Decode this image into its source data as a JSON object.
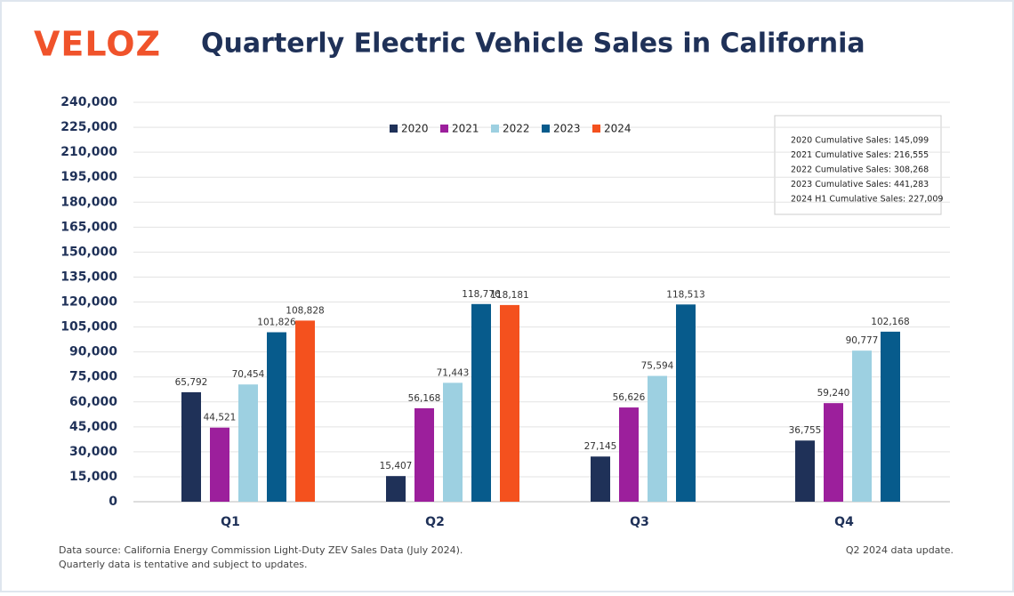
{
  "chart_data": {
    "type": "bar",
    "logo": "VELOZ",
    "title": "Quarterly Electric Vehicle Sales in California",
    "categories": [
      "Q1",
      "Q2",
      "Q3",
      "Q4"
    ],
    "series": [
      {
        "name": "2020",
        "color": "#1f3158",
        "values": [
          65792,
          15407,
          27145,
          36755
        ],
        "value_labels": [
          "65,792",
          "15,407",
          "27,145",
          "36,755"
        ]
      },
      {
        "name": "2021",
        "color": "#9c1f9c",
        "values": [
          44521,
          56168,
          56626,
          59240
        ],
        "value_labels": [
          "44,521",
          "56,168",
          "56,626",
          "59,240"
        ]
      },
      {
        "name": "2022",
        "color": "#9dd0e1",
        "values": [
          70454,
          71443,
          75594,
          90777
        ],
        "value_labels": [
          "70,454",
          "71,443",
          "75,594",
          "90,777"
        ]
      },
      {
        "name": "2023",
        "color": "#075b8c",
        "values": [
          101826,
          118776,
          118513,
          102168
        ],
        "value_labels": [
          "101,826",
          "118,776",
          "118,513",
          "102,168"
        ]
      },
      {
        "name": "2024",
        "color": "#f4511e",
        "values": [
          108828,
          118181,
          null,
          null
        ],
        "value_labels": [
          "108,828",
          "118,181",
          null,
          null
        ]
      }
    ],
    "ylim": [
      0,
      240000
    ],
    "yticks": [
      0,
      {
        "value": 15000,
        "label": "15,000"
      },
      {
        "value": 30000,
        "label": "30,000"
      },
      {
        "value": 45000,
        "label": "45,000"
      },
      {
        "value": 60000,
        "label": "60,000"
      },
      {
        "value": 75000,
        "label": "75,000"
      },
      {
        "value": 90000,
        "label": "90,000"
      },
      {
        "value": 105000,
        "label": "105,000"
      },
      {
        "value": 120000,
        "label": "120,000"
      },
      {
        "value": 135000,
        "label": "135,000"
      },
      {
        "value": 150000,
        "label": "150,000"
      },
      {
        "value": 165000,
        "label": "165,000"
      },
      {
        "value": 180000,
        "label": "180,000"
      },
      {
        "value": 195000,
        "label": "195,000"
      },
      {
        "value": 210000,
        "label": "210,000"
      },
      {
        "value": 225000,
        "label": "225,000"
      },
      {
        "value": 240000,
        "label": "240,000"
      }
    ],
    "grid": true,
    "annotations": [
      "2020 Cumulative Sales: 145,099",
      "2021 Cumulative Sales: 216,555",
      "2022 Cumulative Sales: 308,268",
      "2023 Cumulative Sales: 441,283",
      "2024 H1 Cumulative Sales: 227,009"
    ],
    "notes": [
      "Data source: California Energy Commission Light-Duty ZEV Sales Data (July 2024).",
      "Quarterly data is tentative and subject to updates."
    ],
    "update_note": "Q2 2024 data update."
  }
}
